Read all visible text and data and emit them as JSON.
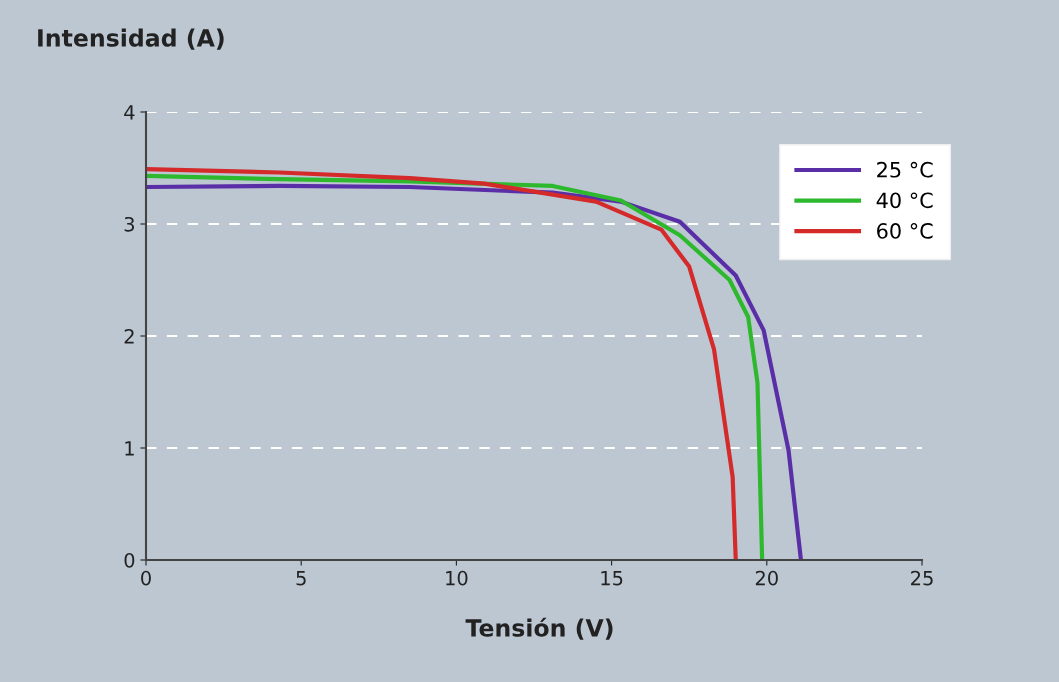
{
  "chart_data": {
    "type": "line",
    "ylabel": "Intensidad (A)",
    "xlabel": "Tensión (V)",
    "xlim": [
      0,
      25
    ],
    "xticks": [
      0,
      5,
      10,
      15,
      20,
      25
    ],
    "ylim": [
      0,
      4
    ],
    "yticks": [
      0,
      1,
      2,
      3,
      4
    ],
    "grid": "y",
    "legend": "top right",
    "line_style": "solid",
    "marker": "none",
    "series": [
      {
        "name": "25 °C",
        "color": "#5a2ea6",
        "x": [
          0,
          4.3,
          8.5,
          13.1,
          15.3,
          17.2,
          19.0,
          19.9,
          20.7,
          21.1
        ],
        "values": [
          3.33,
          3.34,
          3.33,
          3.28,
          3.2,
          3.02,
          2.54,
          2.05,
          0.98,
          0
        ]
      },
      {
        "name": "40 °C",
        "color": "#2eb82e",
        "x": [
          0,
          4.3,
          8.5,
          13.1,
          15.3,
          17.2,
          18.8,
          19.4,
          19.7,
          19.85
        ],
        "values": [
          3.43,
          3.4,
          3.38,
          3.34,
          3.21,
          2.9,
          2.5,
          2.17,
          1.58,
          0
        ]
      },
      {
        "name": "60 °C",
        "color": "#d42a2a",
        "x": [
          0,
          4.3,
          8.5,
          10.9,
          14.5,
          16.6,
          17.5,
          18.3,
          18.9,
          19.0
        ],
        "values": [
          3.49,
          3.46,
          3.41,
          3.36,
          3.2,
          2.95,
          2.62,
          1.88,
          0.74,
          0
        ]
      }
    ]
  }
}
